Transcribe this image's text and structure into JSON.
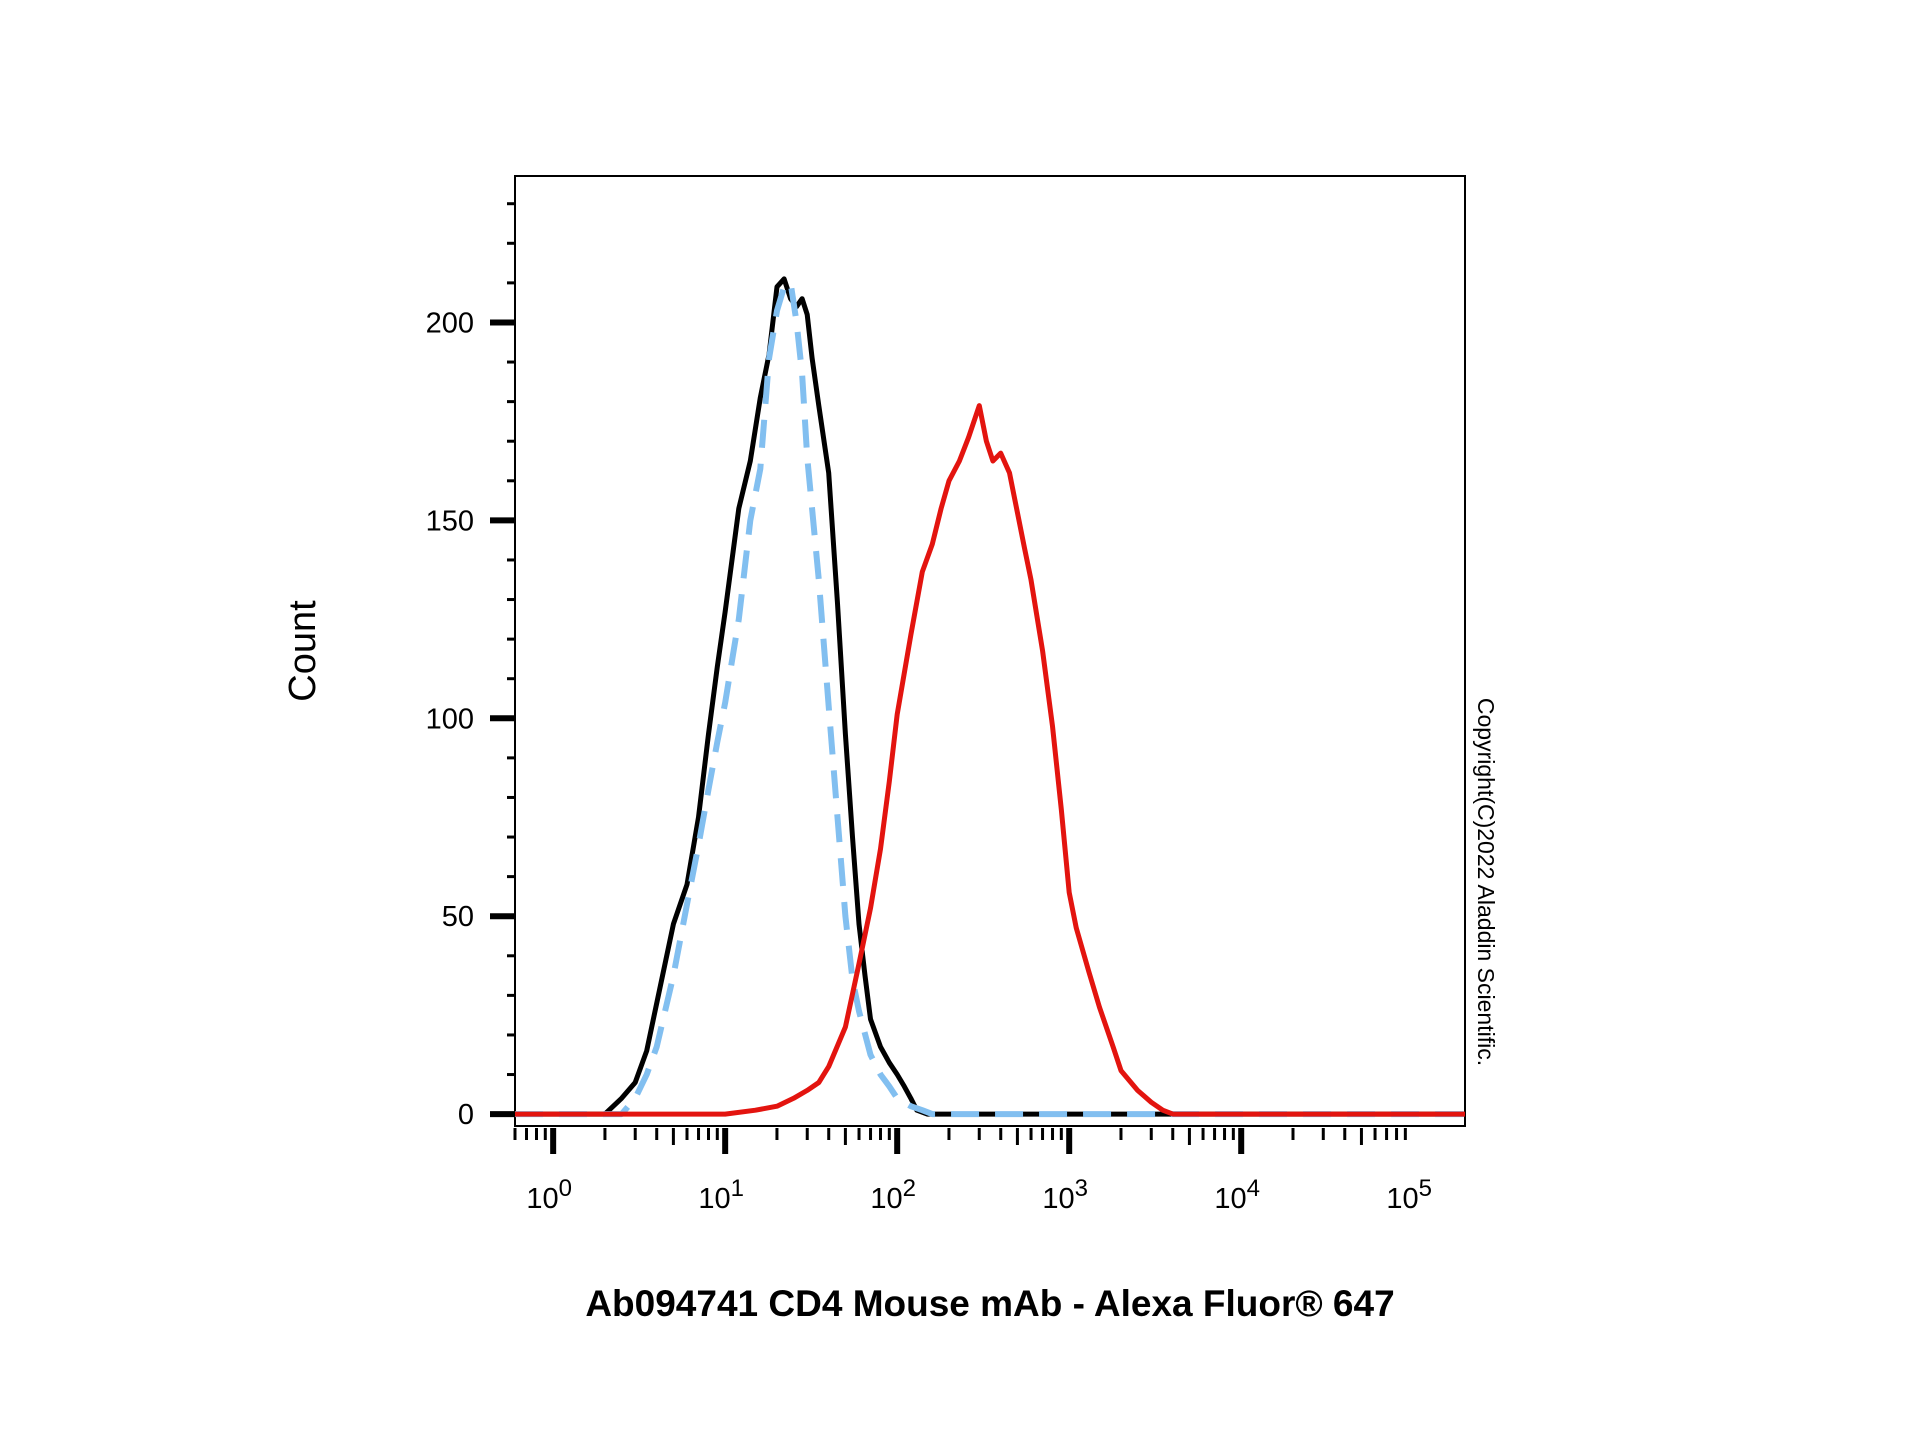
{
  "chart_data": {
    "type": "line",
    "title": "",
    "xlabel": "Ab094741 CD4 Mouse mAb - Alexa Fluor® 647",
    "ylabel": "Count",
    "xscale": "log",
    "xlim": [
      0.6,
      200000
    ],
    "ylim": [
      -3,
      237
    ],
    "x_ticks": [
      {
        "base": "10",
        "exp": "0"
      },
      {
        "base": "10",
        "exp": "1"
      },
      {
        "base": "10",
        "exp": "2"
      },
      {
        "base": "10",
        "exp": "3"
      },
      {
        "base": "10",
        "exp": "4"
      },
      {
        "base": "10",
        "exp": "5"
      }
    ],
    "x_tick_values": [
      1,
      10,
      100,
      1000,
      10000,
      100000
    ],
    "y_ticks": [
      "0",
      "50",
      "100",
      "150",
      "200"
    ],
    "y_tick_values": [
      0,
      50,
      100,
      150,
      200
    ],
    "grid": false,
    "legend": "none",
    "series": [
      {
        "color": "#000000",
        "dash": "solid",
        "x": [
          0.6,
          2.0,
          2.5,
          3.0,
          3.5,
          4.0,
          5.0,
          6.0,
          7.0,
          8.0,
          9.0,
          10,
          12,
          14,
          16,
          18,
          20,
          22,
          24,
          26,
          28,
          30,
          32,
          35,
          40,
          45,
          50,
          55,
          60,
          65,
          70,
          80,
          90,
          100,
          110,
          120,
          130,
          150,
          200,
          1000,
          200000
        ],
        "y": [
          0,
          0,
          4,
          8,
          16,
          28,
          48,
          58,
          75,
          96,
          113,
          127,
          153,
          165,
          181,
          192,
          209,
          211,
          206,
          204,
          206,
          202,
          191,
          179,
          162,
          129,
          96,
          70,
          48,
          35,
          24,
          17,
          13,
          10,
          7,
          4,
          1,
          0,
          0,
          0,
          0
        ]
      },
      {
        "color": "#82bff0",
        "dash": "dashed",
        "x": [
          0.6,
          2.5,
          3.0,
          3.5,
          4.0,
          5.0,
          6.0,
          7.0,
          8.0,
          9.0,
          10,
          11,
          12,
          14,
          16,
          18,
          20,
          22,
          24,
          26,
          28,
          30,
          35,
          40,
          45,
          50,
          55,
          60,
          70,
          80,
          90,
          100,
          120,
          140,
          160,
          200,
          1000,
          200000
        ],
        "y": [
          0,
          0,
          4,
          10,
          17,
          35,
          53,
          68,
          82,
          94,
          104,
          115,
          125,
          150,
          163,
          191,
          203,
          209,
          210,
          200,
          187,
          166,
          135,
          103,
          75,
          50,
          34,
          26,
          15,
          10,
          7,
          4,
          2,
          1,
          0,
          0,
          0,
          0
        ]
      },
      {
        "color": "#e3140f",
        "dash": "solid",
        "x": [
          0.6,
          10,
          15,
          20,
          25,
          30,
          35,
          40,
          50,
          60,
          70,
          80,
          90,
          100,
          120,
          140,
          160,
          180,
          200,
          230,
          260,
          300,
          330,
          360,
          400,
          450,
          500,
          550,
          600,
          700,
          800,
          900,
          1000,
          1100,
          1300,
          1500,
          1800,
          2000,
          2500,
          3000,
          3500,
          4000,
          5000,
          200000
        ],
        "y": [
          0,
          0,
          1,
          2,
          4,
          6,
          8,
          12,
          22,
          38,
          52,
          67,
          84,
          101,
          121,
          137,
          144,
          153,
          160,
          165,
          171,
          179,
          170,
          165,
          167,
          162,
          152,
          143,
          135,
          117,
          98,
          77,
          56,
          47,
          36,
          27,
          17,
          11,
          6,
          3,
          1,
          0,
          0,
          0
        ]
      }
    ]
  },
  "watermark": "Copyright(C)2022 Aladdin Scientific."
}
